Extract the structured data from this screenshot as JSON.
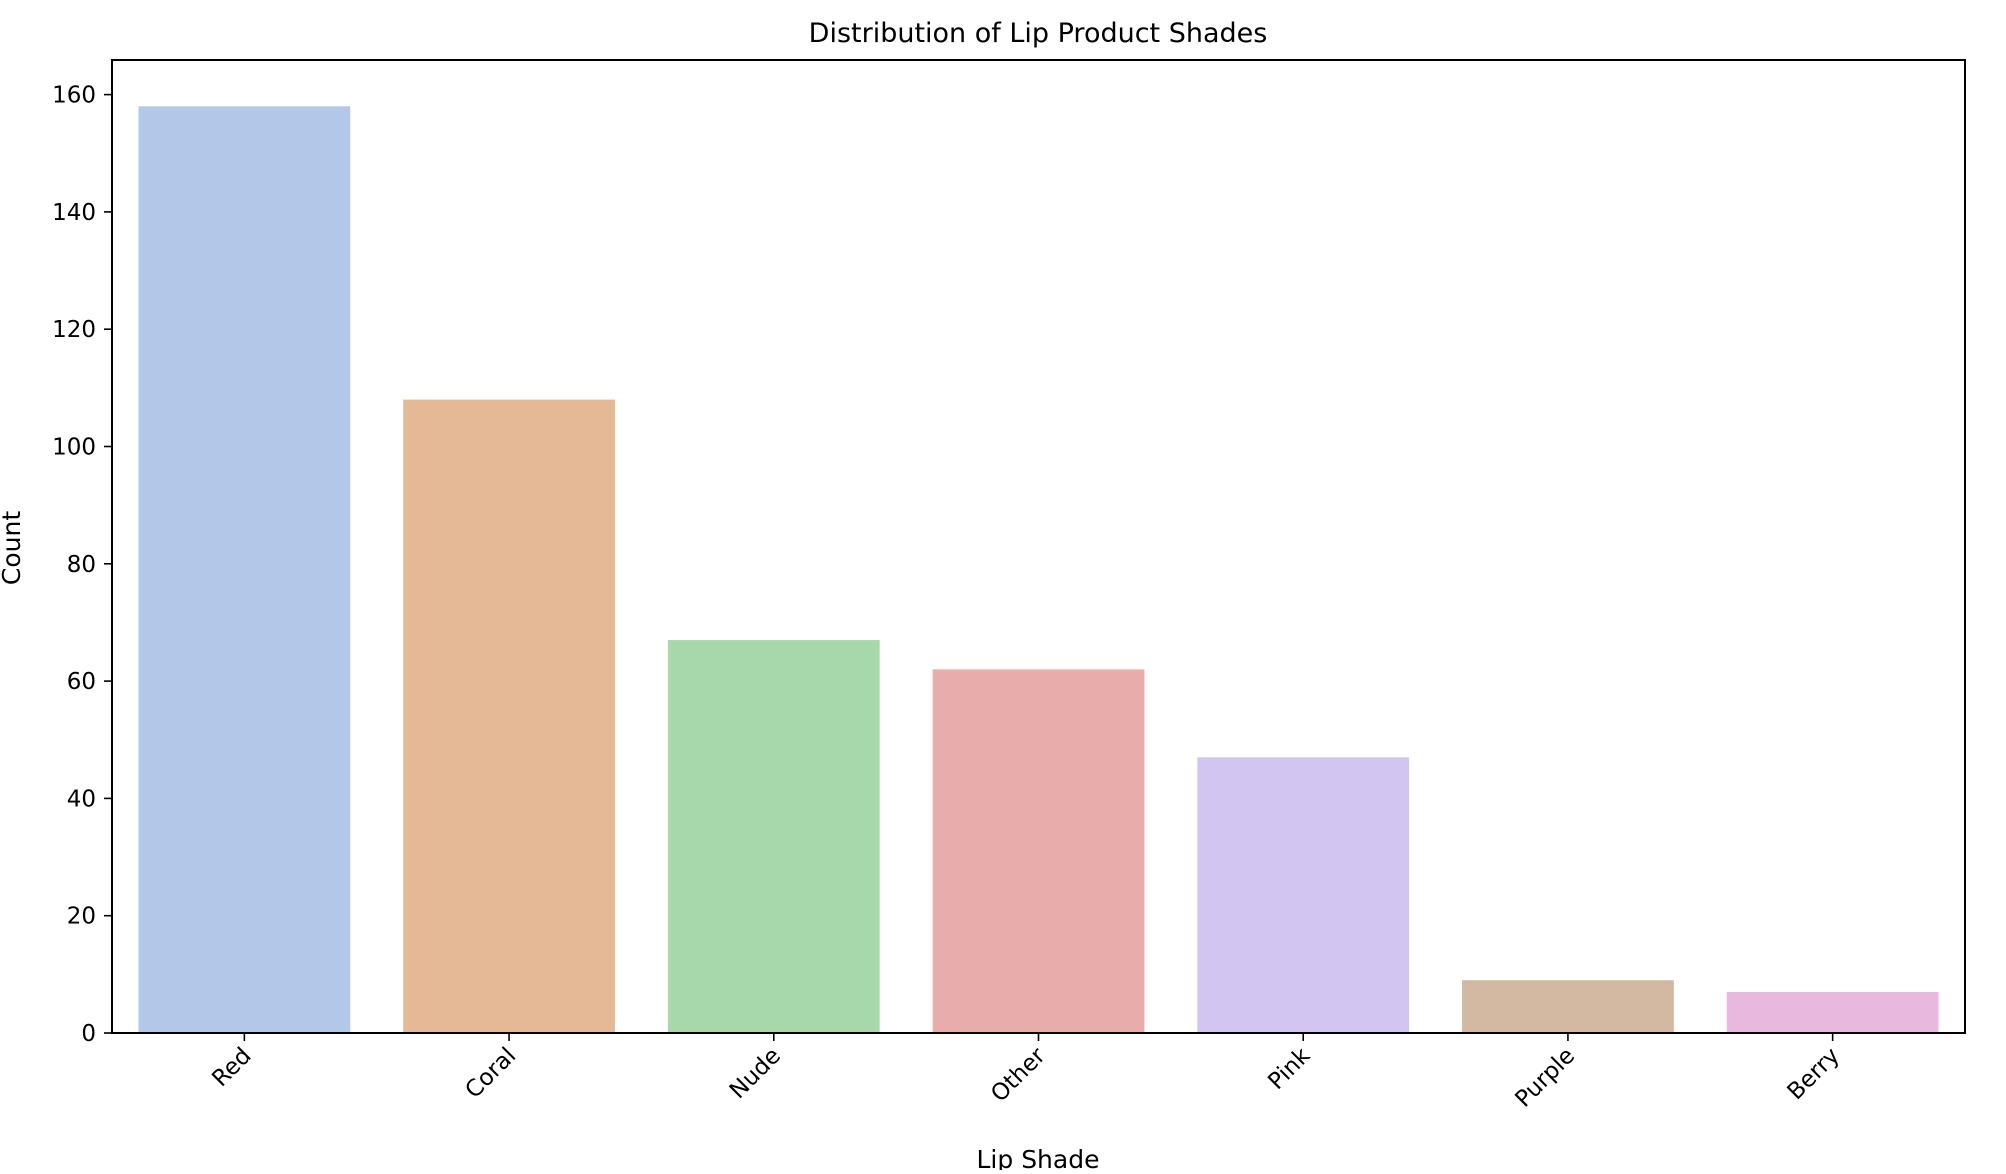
{
  "chart_data": {
    "type": "bar",
    "title": "Distribution of Lip Product Shades",
    "xlabel": "Lip Shade",
    "ylabel": "Count",
    "categories": [
      "Red",
      "Coral",
      "Nude",
      "Other",
      "Pink",
      "Purple",
      "Berry"
    ],
    "values": [
      158,
      108,
      67,
      62,
      47,
      9,
      7
    ],
    "colors": [
      "#b3c8e8",
      "#e6b996",
      "#a7d8ac",
      "#e8adaa",
      "#d2c5f2",
      "#d4b9a2",
      "#e8b8de"
    ],
    "yticks": [
      "0",
      "20",
      "40",
      "60",
      "80",
      "100",
      "120",
      "140",
      "160"
    ],
    "ylim": [
      0,
      165.9
    ],
    "grid": false,
    "legend": "none"
  }
}
